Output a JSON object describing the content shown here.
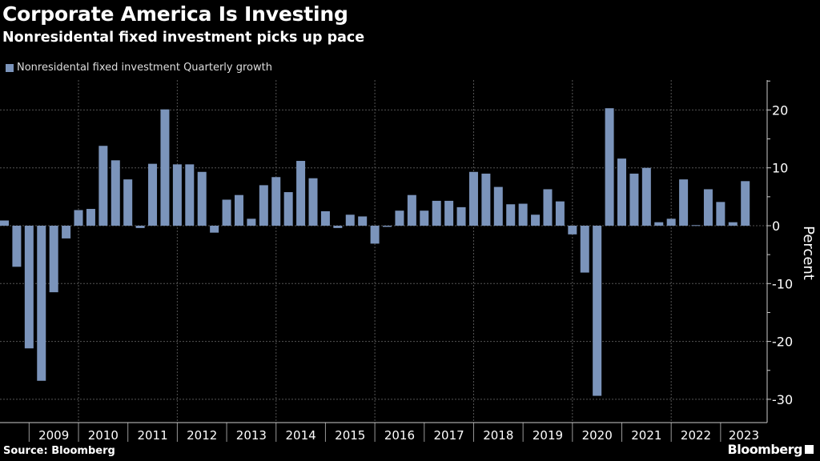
{
  "header": {
    "title": "Corporate America Is Investing",
    "subtitle": "Nonresidental fixed investment picks up pace"
  },
  "footer": {
    "source": "Source: Bloomberg",
    "logo": "Bloomberg"
  },
  "chart_data": {
    "type": "bar",
    "title": "Corporate America Is Investing",
    "subtitle": "Nonresidental fixed investment picks up pace",
    "ylabel": "Percent",
    "xlabel": "",
    "ylim": [
      -34,
      25
    ],
    "y_ticks": [
      20,
      10,
      0,
      -10,
      -20,
      -30
    ],
    "y_axis_position": "right",
    "grid": true,
    "legend_position": "top-left",
    "bar_color": "#7b94bb",
    "year_labels": [
      "2009",
      "2010",
      "2011",
      "2012",
      "2013",
      "2014",
      "2015",
      "2016",
      "2017",
      "2018",
      "2019",
      "2020",
      "2021",
      "2022",
      "2023"
    ],
    "series": [
      {
        "name": "Nonresidental fixed investment Quarterly growth",
        "x": [
          "2008Q2",
          "2008Q3",
          "2008Q4",
          "2009Q1",
          "2009Q2",
          "2009Q3",
          "2009Q4",
          "2010Q1",
          "2010Q2",
          "2010Q3",
          "2010Q4",
          "2011Q1",
          "2011Q2",
          "2011Q3",
          "2011Q4",
          "2012Q1",
          "2012Q2",
          "2012Q3",
          "2012Q4",
          "2013Q1",
          "2013Q2",
          "2013Q3",
          "2013Q4",
          "2014Q1",
          "2014Q2",
          "2014Q3",
          "2014Q4",
          "2015Q1",
          "2015Q2",
          "2015Q3",
          "2015Q4",
          "2016Q1",
          "2016Q2",
          "2016Q3",
          "2016Q4",
          "2017Q1",
          "2017Q2",
          "2017Q3",
          "2017Q4",
          "2018Q1",
          "2018Q2",
          "2018Q3",
          "2018Q4",
          "2019Q1",
          "2019Q2",
          "2019Q3",
          "2019Q4",
          "2020Q1",
          "2020Q2",
          "2020Q3",
          "2020Q4",
          "2021Q1",
          "2021Q2",
          "2021Q3",
          "2021Q4",
          "2022Q1",
          "2022Q2",
          "2022Q3",
          "2022Q4",
          "2023Q1",
          "2023Q2"
        ],
        "values": [
          0.9,
          -7.1,
          -21.2,
          -26.8,
          -11.5,
          -2.2,
          2.7,
          2.9,
          13.8,
          11.3,
          8.0,
          -0.4,
          10.7,
          20.1,
          10.6,
          10.6,
          9.3,
          -1.2,
          4.5,
          5.3,
          1.2,
          7.0,
          8.4,
          5.8,
          11.2,
          8.2,
          2.5,
          -0.4,
          1.9,
          1.6,
          -3.1,
          -0.2,
          2.6,
          5.3,
          2.6,
          4.3,
          4.3,
          3.2,
          9.3,
          9.0,
          6.7,
          3.7,
          3.8,
          1.9,
          6.3,
          4.2,
          -1.5,
          -8.1,
          -29.4,
          20.3,
          11.6,
          9.0,
          10.0,
          0.6,
          1.2,
          8.0,
          0.1,
          6.3,
          4.1,
          0.6,
          7.7
        ]
      }
    ]
  }
}
